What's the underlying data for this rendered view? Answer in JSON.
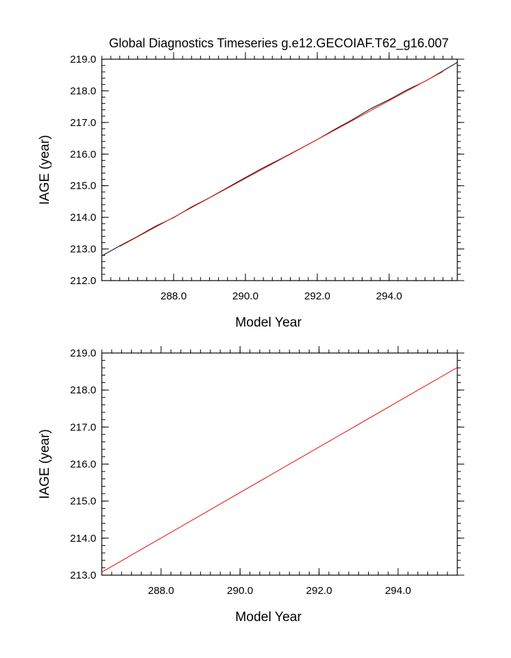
{
  "title": "Global Diagnostics Timeseries g.e12.GECOIAF.T62_g16.007",
  "colors": {
    "raw": "#000000",
    "fit": "#e8221b"
  },
  "chart_data": [
    {
      "type": "line",
      "xlabel": "Model Year",
      "ylabel": "IAGE (year)",
      "xlim": [
        286.0,
        295.9
      ],
      "ylim": [
        212.0,
        219.0
      ],
      "xticks": [
        "288.0",
        "290.0",
        "292.0",
        "294.0"
      ],
      "yticks": [
        "212.0",
        "213.0",
        "214.0",
        "215.0",
        "216.0",
        "217.0",
        "218.0",
        "219.0"
      ],
      "series": [
        {
          "color": "#000000",
          "x": [
            286.0,
            286.5,
            287.0,
            287.5,
            288.0,
            288.5,
            289.0,
            289.5,
            290.0,
            290.5,
            291.0,
            291.5,
            292.0,
            292.5,
            293.0,
            293.5,
            294.0,
            294.5,
            295.0,
            295.5,
            295.9
          ],
          "y": [
            212.78,
            213.1,
            213.4,
            213.72,
            213.99,
            214.33,
            214.62,
            214.94,
            215.26,
            215.57,
            215.86,
            216.16,
            216.46,
            216.79,
            217.1,
            217.44,
            217.72,
            218.03,
            218.3,
            218.63,
            218.9
          ]
        },
        {
          "color": "#e8221b",
          "x": [
            286.5,
            295.5
          ],
          "y": [
            213.08,
            218.61
          ]
        }
      ]
    },
    {
      "type": "line",
      "xlabel": "Model Year",
      "ylabel": "IAGE (year)",
      "xlim": [
        286.5,
        295.5
      ],
      "ylim": [
        213.0,
        219.0
      ],
      "xticks": [
        "288.0",
        "290.0",
        "292.0",
        "294.0"
      ],
      "yticks": [
        "213.0",
        "214.0",
        "215.0",
        "216.0",
        "217.0",
        "218.0",
        "219.0"
      ],
      "series": [
        {
          "color": "#e8221b",
          "x": [
            286.5,
            295.5
          ],
          "y": [
            213.08,
            218.61
          ]
        }
      ]
    }
  ]
}
